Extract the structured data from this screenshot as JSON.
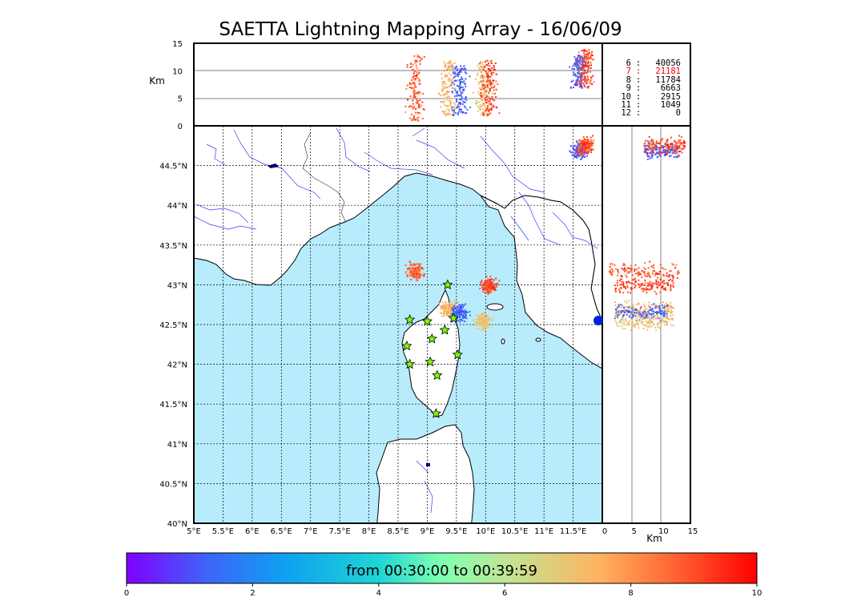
{
  "title": "SAETTA Lightning Mapping Array - 16/06/09",
  "map": {
    "lon_range": [
      5,
      12
    ],
    "lat_range": [
      40,
      45
    ],
    "lon_ticks": [
      "5°E",
      "5.5°E",
      "6°E",
      "6.5°E",
      "7°E",
      "7.5°E",
      "8°E",
      "8.5°E",
      "9°E",
      "9.5°E",
      "10°E",
      "10.5°E",
      "11°E",
      "11.5°E"
    ],
    "lat_ticks": [
      "40°N",
      "40.5°N",
      "41°N",
      "41.5°N",
      "42°N",
      "42.5°N",
      "43°N",
      "43.5°N",
      "44°N",
      "44.5°N"
    ],
    "sea_color": "#b8ecfc",
    "land_color": "#ffffff",
    "river_color": "#3a3aff",
    "station_color": "#7fff00",
    "stations": [
      {
        "lon": 9.35,
        "lat": 43.0
      },
      {
        "lon": 8.7,
        "lat": 42.56
      },
      {
        "lon": 9.0,
        "lat": 42.54
      },
      {
        "lon": 9.45,
        "lat": 42.58
      },
      {
        "lon": 9.3,
        "lat": 42.43
      },
      {
        "lon": 9.08,
        "lat": 42.32
      },
      {
        "lon": 8.65,
        "lat": 42.23
      },
      {
        "lon": 9.52,
        "lat": 42.12
      },
      {
        "lon": 9.05,
        "lat": 42.03
      },
      {
        "lon": 8.7,
        "lat": 42.0
      },
      {
        "lon": 9.17,
        "lat": 41.86
      },
      {
        "lon": 9.15,
        "lat": 41.38
      }
    ]
  },
  "top_panel": {
    "ylabel": "Km",
    "y_ticks": [
      "0",
      "5",
      "10",
      "15"
    ],
    "y_range": [
      0,
      15
    ]
  },
  "side_panel": {
    "xlabel": "Km",
    "x_ticks": [
      "0",
      "5",
      "10",
      "15"
    ],
    "x_range": [
      0,
      15
    ]
  },
  "legend": {
    "rows": [
      {
        "key": "6",
        "sep": ":",
        "value": "40056",
        "highlight": false
      },
      {
        "key": "7",
        "sep": ":",
        "value": "21181",
        "highlight": true
      },
      {
        "key": "8",
        "sep": ":",
        "value": "11784",
        "highlight": false
      },
      {
        "key": "9",
        "sep": ":",
        "value": "6663",
        "highlight": false
      },
      {
        "key": "10",
        "sep": ":",
        "value": "2915",
        "highlight": false
      },
      {
        "key": "11",
        "sep": ":",
        "value": "1049",
        "highlight": false
      },
      {
        "key": "12",
        "sep": ":",
        "value": "0",
        "highlight": false
      }
    ]
  },
  "colorbar": {
    "label": "from 00:30:00 to 00:39:59",
    "ticks": [
      "0",
      "2",
      "4",
      "6",
      "8",
      "10"
    ],
    "range": [
      0,
      10
    ]
  },
  "lightning_clusters": [
    {
      "lon": 8.78,
      "lat": 43.18,
      "alt_range": [
        1,
        13
      ],
      "time": 8.8
    },
    {
      "lon": 9.35,
      "lat": 42.7,
      "alt_range": [
        2,
        12
      ],
      "time": 7.4
    },
    {
      "lon": 9.55,
      "lat": 42.65,
      "alt_range": [
        2,
        11
      ],
      "time": 1.3
    },
    {
      "lon": 9.95,
      "lat": 42.55,
      "alt_range": [
        2,
        12
      ],
      "time": 7.0
    },
    {
      "lon": 10.05,
      "lat": 43.0,
      "alt_range": [
        2,
        12
      ],
      "time": 9.2
    },
    {
      "lon": 11.6,
      "lat": 44.7,
      "alt_range": [
        7,
        13
      ],
      "time": 1.2
    },
    {
      "lon": 11.7,
      "lat": 44.76,
      "alt_range": [
        7,
        14
      ],
      "time": 9.0
    }
  ]
}
